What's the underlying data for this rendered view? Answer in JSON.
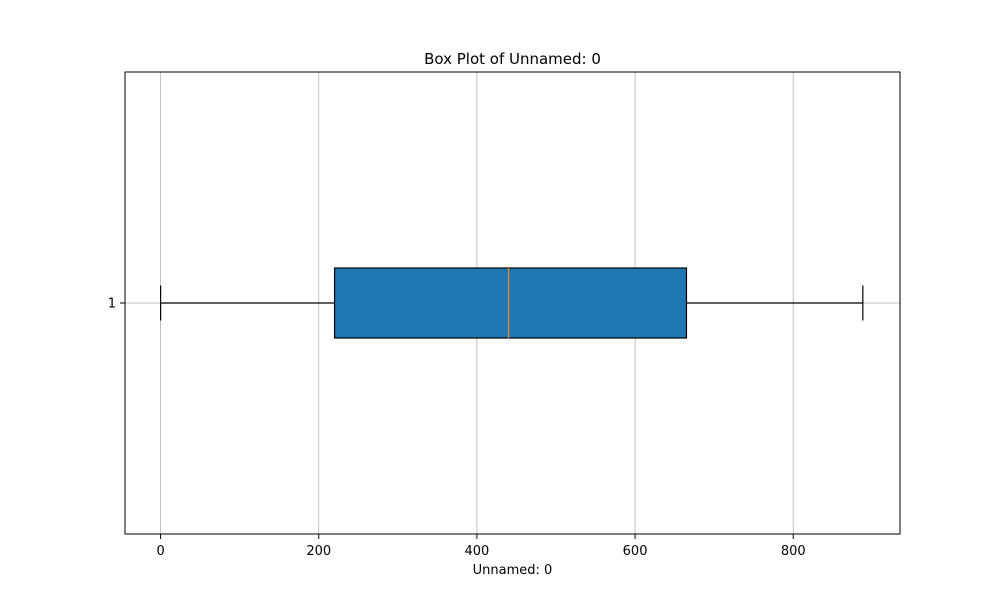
{
  "chart_data": {
    "type": "box",
    "orientation": "horizontal",
    "title": "Box Plot of Unnamed: 0",
    "xlabel": "Unnamed: 0",
    "ylabel": "",
    "xlim": [
      -45,
      935
    ],
    "xticks": [
      0,
      200,
      400,
      600,
      800
    ],
    "xtick_labels": [
      "0",
      "200",
      "400",
      "600",
      "800"
    ],
    "ytick_labels": [
      "1"
    ],
    "grid": true,
    "box_color": "#1f77b4",
    "median_color": "#ff7f0e",
    "boxes": [
      {
        "label": "1",
        "whisker_low": 0,
        "q1": 220,
        "median": 440,
        "q3": 665,
        "whisker_high": 888
      }
    ]
  }
}
